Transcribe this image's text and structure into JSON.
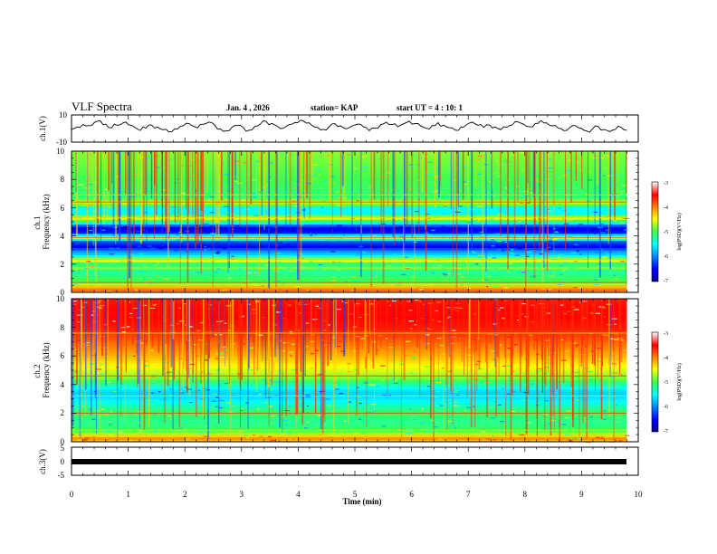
{
  "chart_data": {
    "type": "heatmap",
    "title": "VLF Spectra",
    "header": {
      "date": "Jan. 4 , 2026",
      "station": "station= KAP",
      "start": "start UT = 4 : 10: 1"
    },
    "xlabel": "Time (min)",
    "xlim": [
      0,
      10
    ],
    "xticks": [
      "0",
      "1",
      "2",
      "3",
      "4",
      "5",
      "6",
      "7",
      "8",
      "9",
      "10"
    ],
    "data_end_min": 9.8,
    "panels": [
      {
        "id": "ch1-wave",
        "type": "line",
        "ylabel": "ch.1(V)",
        "ylim": [
          -10,
          10
        ],
        "yticks": [
          "10",
          "-10"
        ],
        "trace": [
          -0.5,
          1.2,
          3.0,
          2.1,
          4.5,
          5.8,
          3.2,
          0.6,
          2.4,
          4.1,
          2.7,
          1.0,
          -1.4,
          0.3,
          2.6,
          1.1,
          -0.9,
          -2.5,
          -0.4,
          1.7,
          3.9,
          2.2,
          0.5,
          3.1,
          4.8,
          2.6,
          -0.2,
          -1.8,
          0.9,
          2.3,
          0.7,
          -1.2,
          1.5,
          3.4,
          5.2,
          3.8,
          1.6,
          0.2,
          2.9,
          4.4,
          6.1,
          4.0,
          2.3,
          0.8,
          -0.6,
          1.4,
          3.6,
          2.0,
          -0.3,
          1.8,
          3.3,
          1.2,
          -1.6,
          0.4,
          2.8,
          4.6,
          3.0,
          1.3,
          3.5,
          5.5,
          3.7,
          1.9,
          0.1,
          2.2,
          4.3,
          2.5,
          0.6,
          -1.1,
          1.0,
          2.9,
          4.7,
          2.4,
          0.8,
          2.6,
          1.1,
          -0.8,
          0.9,
          2.7,
          4.9,
          3.1,
          1.4,
          3.8,
          5.9,
          4.2,
          2.0,
          0.3,
          -1.5,
          0.6,
          2.1,
          0.2,
          -1.9,
          -0.1,
          1.6,
          -0.7,
          -2.3,
          -0.6,
          0.8,
          -1.3
        ]
      },
      {
        "id": "ch1-spec",
        "type": "heatmap",
        "ylabel": "ch.1\nFrequency (kHz)",
        "ylim": [
          0,
          10
        ],
        "yticks": [
          "0",
          "2",
          "4",
          "6",
          "8",
          "10"
        ],
        "colorbar": {
          "ticks": [
            "-3",
            "-4",
            "-5",
            "-6",
            "-7"
          ],
          "label": "log(PSD)(V²/Hz)",
          "range": [
            -7,
            -3
          ]
        },
        "profile": [
          [
            0.0,
            -4.2
          ],
          [
            0.3,
            -3.7
          ],
          [
            0.5,
            -4.6
          ],
          [
            0.8,
            -5.0
          ],
          [
            1.0,
            -5.0
          ],
          [
            1.5,
            -5.3
          ],
          [
            1.8,
            -4.7
          ],
          [
            2.0,
            -5.4
          ],
          [
            2.3,
            -4.3
          ],
          [
            2.6,
            -5.6
          ],
          [
            3.0,
            -6.0
          ],
          [
            3.2,
            -6.6
          ],
          [
            3.6,
            -6.2
          ],
          [
            3.9,
            -4.4
          ],
          [
            4.2,
            -6.4
          ],
          [
            4.6,
            -6.6
          ],
          [
            4.9,
            -5.6
          ],
          [
            5.3,
            -4.4
          ],
          [
            5.6,
            -5.5
          ],
          [
            6.0,
            -5.5
          ],
          [
            6.4,
            -4.5
          ],
          [
            6.7,
            -5.1
          ],
          [
            7.0,
            -5.1
          ],
          [
            8.0,
            -5.0
          ],
          [
            9.0,
            -4.9
          ],
          [
            10.0,
            -4.8
          ]
        ],
        "lines_khz": [
          0.25,
          0.7,
          2.3,
          3.9,
          5.3,
          6.4,
          6.9
        ]
      },
      {
        "id": "ch2-spec",
        "type": "heatmap",
        "ylabel": "ch.2\nFrequency (kHz)",
        "ylim": [
          0,
          10
        ],
        "yticks": [
          "0",
          "2",
          "4",
          "6",
          "8",
          "10"
        ],
        "colorbar": {
          "ticks": [
            "-3",
            "-4",
            "-5",
            "-6",
            "-7"
          ],
          "label": "log(PSD)(V²/Hz)",
          "range": [
            -7,
            -3
          ]
        },
        "profile": [
          [
            0.0,
            -4.3
          ],
          [
            0.3,
            -4.0
          ],
          [
            0.6,
            -4.8
          ],
          [
            1.0,
            -5.1
          ],
          [
            1.5,
            -5.2
          ],
          [
            2.0,
            -5.0
          ],
          [
            2.5,
            -5.3
          ],
          [
            3.0,
            -5.6
          ],
          [
            3.5,
            -5.7
          ],
          [
            4.0,
            -5.3
          ],
          [
            4.5,
            -4.8
          ],
          [
            5.0,
            -4.6
          ],
          [
            5.5,
            -4.4
          ],
          [
            6.0,
            -4.2
          ],
          [
            7.0,
            -3.9
          ],
          [
            8.0,
            -3.6
          ],
          [
            9.0,
            -3.5
          ],
          [
            10.0,
            -3.6
          ]
        ],
        "lines_khz": [
          0.8,
          2.0,
          3.2,
          4.6,
          7.6
        ]
      },
      {
        "id": "ch3-wave",
        "type": "line",
        "ylabel": "ch.3(V)",
        "ylim": [
          -5,
          5
        ],
        "yticks": [
          "5",
          "0",
          "-5"
        ],
        "level": 0
      }
    ]
  },
  "colors": {
    "background": "#ffffff",
    "axis": "#000000",
    "trace": "#000000"
  }
}
